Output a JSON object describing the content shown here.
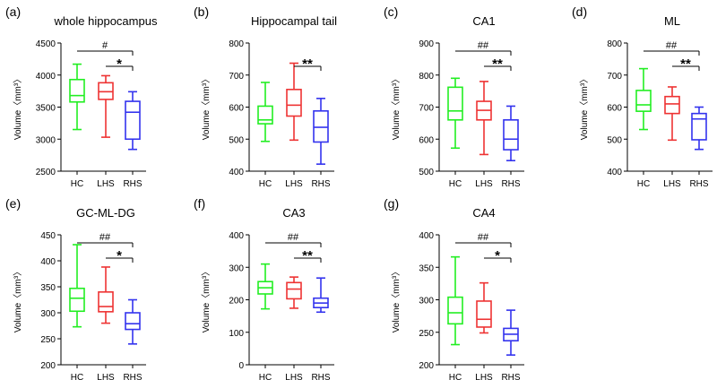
{
  "colors": {
    "HC": "#22ee22",
    "LHS": "#ee3333",
    "RHS": "#3333ee",
    "axis": "#000000"
  },
  "chart_data": [
    {
      "type": "boxplot",
      "panel_label": "(a)",
      "title": "whole hippocampus",
      "ylabel": "Volume〈mm³〉",
      "ylim": [
        2500,
        4500
      ],
      "yticks": [
        "2500",
        "3000",
        "3500",
        "4000",
        "4500"
      ],
      "categories": [
        "HC",
        "LHS",
        "RHS"
      ],
      "boxes": [
        {
          "group": "HC",
          "min": 3150,
          "q1": 3580,
          "median": 3680,
          "q3": 3930,
          "max": 4170
        },
        {
          "group": "LHS",
          "min": 3030,
          "q1": 3620,
          "median": 3740,
          "q3": 3880,
          "max": 3990
        },
        {
          "group": "RHS",
          "min": 2840,
          "q1": 3000,
          "median": 3420,
          "q3": 3590,
          "max": 3740
        }
      ],
      "brackets": [
        {
          "from": "HC",
          "to": "RHS",
          "label": "#",
          "level": 1
        },
        {
          "from": "LHS",
          "to": "RHS",
          "label": "*",
          "level": 0
        }
      ]
    },
    {
      "type": "boxplot",
      "panel_label": "(b)",
      "title": "Hippocampal tail",
      "ylabel": "Volume〈mm³〉",
      "ylim": [
        400,
        800
      ],
      "yticks": [
        "400",
        "500",
        "600",
        "700",
        "800"
      ],
      "categories": [
        "HC",
        "LHS",
        "RHS"
      ],
      "boxes": [
        {
          "group": "HC",
          "min": 493,
          "q1": 548,
          "median": 560,
          "q3": 603,
          "max": 677
        },
        {
          "group": "LHS",
          "min": 497,
          "q1": 572,
          "median": 606,
          "q3": 655,
          "max": 737
        },
        {
          "group": "RHS",
          "min": 422,
          "q1": 491,
          "median": 537,
          "q3": 588,
          "max": 627
        }
      ],
      "brackets": [
        {
          "from": "LHS",
          "to": "RHS",
          "label": "**",
          "level": 0
        }
      ]
    },
    {
      "type": "boxplot",
      "panel_label": "(c)",
      "title": "CA1",
      "ylabel": "Volume〈mm³〉",
      "ylim": [
        500,
        900
      ],
      "yticks": [
        "500",
        "600",
        "700",
        "800",
        "900"
      ],
      "categories": [
        "HC",
        "LHS",
        "RHS"
      ],
      "boxes": [
        {
          "group": "HC",
          "min": 572,
          "q1": 660,
          "median": 688,
          "q3": 762,
          "max": 790
        },
        {
          "group": "LHS",
          "min": 552,
          "q1": 660,
          "median": 690,
          "q3": 718,
          "max": 780
        },
        {
          "group": "RHS",
          "min": 533,
          "q1": 567,
          "median": 600,
          "q3": 660,
          "max": 703
        }
      ],
      "brackets": [
        {
          "from": "HC",
          "to": "RHS",
          "label": "##",
          "level": 1
        },
        {
          "from": "LHS",
          "to": "RHS",
          "label": "**",
          "level": 0
        }
      ]
    },
    {
      "type": "boxplot",
      "panel_label": "(d)",
      "title": "ML",
      "ylabel": "Volume〈mm³〉",
      "ylim": [
        400,
        800
      ],
      "yticks": [
        "400",
        "500",
        "600",
        "700",
        "800"
      ],
      "categories": [
        "HC",
        "LHS",
        "RHS"
      ],
      "boxes": [
        {
          "group": "HC",
          "min": 530,
          "q1": 587,
          "median": 607,
          "q3": 652,
          "max": 720
        },
        {
          "group": "LHS",
          "min": 497,
          "q1": 580,
          "median": 610,
          "q3": 633,
          "max": 663
        },
        {
          "group": "RHS",
          "min": 468,
          "q1": 498,
          "median": 563,
          "q3": 580,
          "max": 600
        }
      ],
      "brackets": [
        {
          "from": "HC",
          "to": "RHS",
          "label": "##",
          "level": 1
        },
        {
          "from": "LHS",
          "to": "RHS",
          "label": "**",
          "level": 0
        }
      ]
    },
    {
      "type": "boxplot",
      "panel_label": "(e)",
      "title": "GC-ML-DG",
      "ylabel": "Volume〈mm³〉",
      "ylim": [
        200,
        450
      ],
      "yticks": [
        "200",
        "250",
        "300",
        "350",
        "400",
        "450"
      ],
      "categories": [
        "HC",
        "LHS",
        "RHS"
      ],
      "boxes": [
        {
          "group": "HC",
          "min": 273,
          "q1": 303,
          "median": 328,
          "q3": 347,
          "max": 431
        },
        {
          "group": "LHS",
          "min": 280,
          "q1": 302,
          "median": 312,
          "q3": 340,
          "max": 388
        },
        {
          "group": "RHS",
          "min": 240,
          "q1": 268,
          "median": 279,
          "q3": 300,
          "max": 325
        }
      ],
      "brackets": [
        {
          "from": "HC",
          "to": "RHS",
          "label": "##",
          "level": 1
        },
        {
          "from": "LHS",
          "to": "RHS",
          "label": "*",
          "level": 0
        }
      ]
    },
    {
      "type": "boxplot",
      "panel_label": "(f)",
      "title": "CA3",
      "ylabel": "Volume〈mm³〉",
      "ylim": [
        0,
        400
      ],
      "yticks": [
        "0",
        "100",
        "200",
        "300",
        "400"
      ],
      "categories": [
        "HC",
        "LHS",
        "RHS"
      ],
      "boxes": [
        {
          "group": "HC",
          "min": 172,
          "q1": 218,
          "median": 237,
          "q3": 256,
          "max": 310
        },
        {
          "group": "LHS",
          "min": 174,
          "q1": 203,
          "median": 233,
          "q3": 253,
          "max": 270
        },
        {
          "group": "RHS",
          "min": 162,
          "q1": 176,
          "median": 190,
          "q3": 205,
          "max": 267
        }
      ],
      "brackets": [
        {
          "from": "HC",
          "to": "RHS",
          "label": "##",
          "level": 1
        },
        {
          "from": "LHS",
          "to": "RHS",
          "label": "**",
          "level": 0
        }
      ]
    },
    {
      "type": "boxplot",
      "panel_label": "(g)",
      "title": "CA4",
      "ylabel": "Volume〈mm³〉",
      "ylim": [
        200,
        400
      ],
      "yticks": [
        "200",
        "250",
        "300",
        "350",
        "400"
      ],
      "categories": [
        "HC",
        "LHS",
        "RHS"
      ],
      "boxes": [
        {
          "group": "HC",
          "min": 231,
          "q1": 263,
          "median": 280,
          "q3": 304,
          "max": 366
        },
        {
          "group": "LHS",
          "min": 249,
          "q1": 258,
          "median": 270,
          "q3": 298,
          "max": 326
        },
        {
          "group": "RHS",
          "min": 215,
          "q1": 237,
          "median": 247,
          "q3": 256,
          "max": 284
        }
      ],
      "brackets": [
        {
          "from": "HC",
          "to": "RHS",
          "label": "##",
          "level": 1
        },
        {
          "from": "LHS",
          "to": "RHS",
          "label": "*",
          "level": 0
        }
      ]
    }
  ]
}
